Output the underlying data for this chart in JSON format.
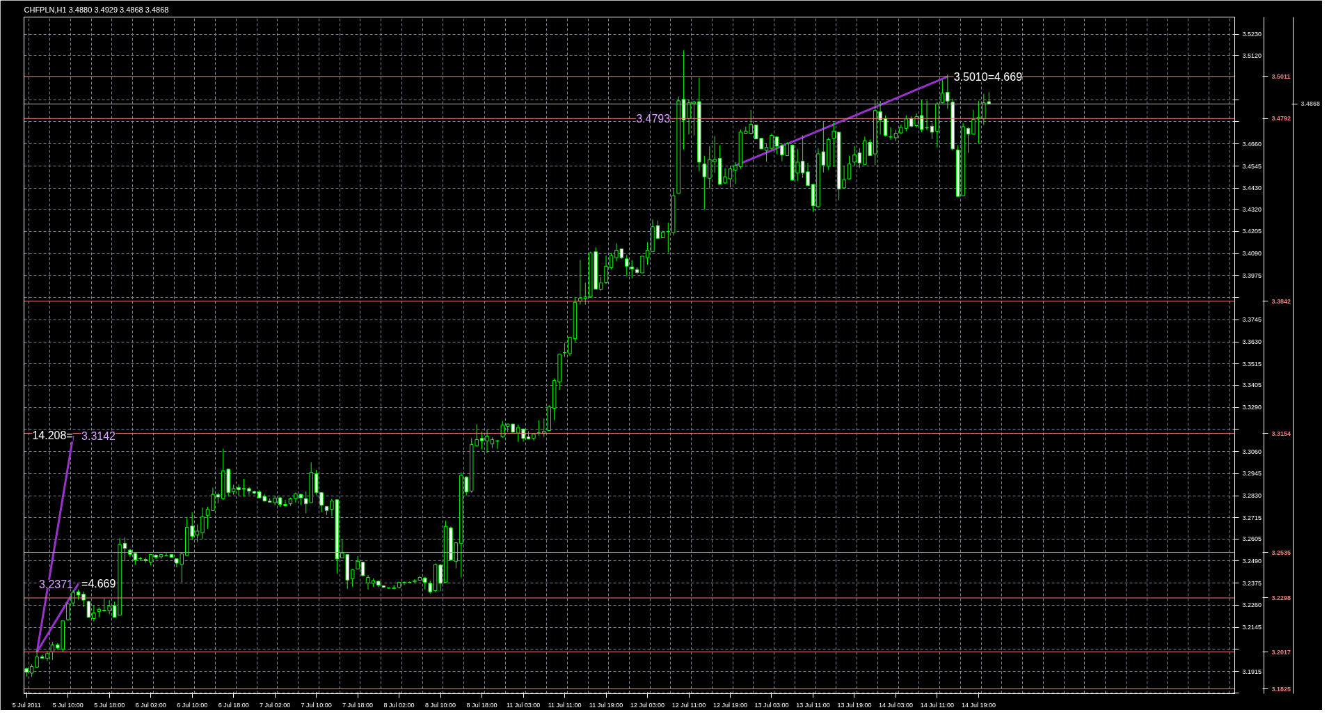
{
  "chart_data": {
    "type": "candlestick",
    "title": "CHFPLN,H1  3.4880 3.4929 3.4868 3.4868",
    "color": "#00ff00",
    "categories": [
      "5 Jul 2011",
      null,
      null,
      null,
      null,
      null,
      null,
      null,
      "5 Jul 10:00",
      null,
      null,
      null,
      null,
      null,
      null,
      null,
      "5 Jul 18:00",
      null,
      null,
      null,
      null,
      null,
      null,
      null,
      "6 Jul 02:00",
      null,
      null,
      null,
      null,
      null,
      null,
      null,
      "6 Jul 10:00",
      null,
      null,
      null,
      null,
      null,
      null,
      null,
      "6 Jul 18:00",
      null,
      null,
      null,
      null,
      null,
      null,
      null,
      "7 Jul 02:00",
      null,
      null,
      null,
      null,
      null,
      null,
      null,
      "7 Jul 10:00",
      null,
      null,
      null,
      null,
      null,
      null,
      null,
      "7 Jul 18:00",
      null,
      null,
      null,
      null,
      null,
      null,
      null,
      "8 Jul 02:00",
      null,
      null,
      null,
      null,
      null,
      null,
      null,
      "8 Jul 10:00",
      null,
      null,
      null,
      null,
      null,
      null,
      null,
      "8 Jul 18:00",
      null,
      null,
      null,
      null,
      null,
      null,
      null,
      "11 Jul 03:00",
      null,
      null,
      null,
      null,
      null,
      null,
      null,
      "11 Jul 11:00",
      null,
      null,
      null,
      null,
      null,
      null,
      null,
      "11 Jul 19:00",
      null,
      null,
      null,
      null,
      null,
      null,
      null,
      "12 Jul 03:00",
      null,
      null,
      null,
      null,
      null,
      null,
      null,
      "12 Jul 11:00",
      null,
      null,
      null,
      null,
      null,
      null,
      null,
      "12 Jul 19:00",
      null,
      null,
      null,
      null,
      null,
      null,
      null,
      "13 Jul 03:00",
      null,
      null,
      null,
      null,
      null,
      null,
      null,
      "13 Jul 11:00",
      null,
      null,
      null,
      null,
      null,
      null,
      null,
      "13 Jul 19:00",
      null,
      null,
      null,
      null,
      null,
      null,
      null,
      "14 Jul 03:00",
      null,
      null,
      null,
      null,
      null,
      null,
      null,
      "14 Jul 11:00",
      null,
      null,
      null,
      null,
      null,
      null,
      null,
      "14 Jul 19:00",
      null,
      null,
      null,
      null,
      null,
      null,
      null,
      null,
      null,
      null,
      null,
      null,
      null,
      null,
      null,
      null,
      null,
      null,
      null,
      null,
      null,
      null,
      null,
      null,
      null,
      null,
      null,
      null,
      null,
      null,
      null,
      null,
      null,
      null,
      null,
      null,
      null,
      null,
      null,
      null,
      null,
      null,
      null,
      null,
      null,
      null,
      null,
      null,
      null
    ],
    "ohlc": [
      [
        3.193,
        3.1936,
        3.1889,
        3.1912
      ],
      [
        3.1907,
        3.1953,
        3.1887,
        3.1941
      ],
      [
        3.1938,
        3.2028,
        3.1936,
        3.1991
      ],
      [
        3.1991,
        3.2002,
        3.1982,
        3.1984
      ],
      [
        3.1984,
        3.2023,
        3.197,
        3.2009
      ],
      [
        3.2017,
        3.2069,
        3.1976,
        3.2054
      ],
      [
        3.2054,
        3.2063,
        3.2028,
        3.2038
      ],
      [
        3.2031,
        3.2179,
        3.2017,
        3.2179
      ],
      [
        3.2185,
        3.2272,
        3.2179,
        3.2266
      ],
      [
        3.2272,
        3.2338,
        3.2255,
        3.2327
      ],
      [
        3.233,
        3.2342,
        3.2289,
        3.2313
      ],
      [
        3.2318,
        3.2332,
        3.2251,
        3.2287
      ],
      [
        3.228,
        3.2284,
        3.2197,
        3.2197
      ],
      [
        3.2191,
        3.2258,
        3.2176,
        3.222
      ],
      [
        3.2228,
        3.2249,
        3.2199,
        3.2239
      ],
      [
        3.2231,
        3.2295,
        3.2226,
        3.2234
      ],
      [
        3.2231,
        3.2287,
        3.2214,
        3.2257
      ],
      [
        3.2258,
        3.2278,
        3.2197,
        3.2197
      ],
      [
        3.2208,
        3.2608,
        3.2208,
        3.2576
      ],
      [
        3.2582,
        3.2614,
        3.2489,
        3.2556
      ],
      [
        3.2547,
        3.2553,
        3.251,
        3.2525
      ],
      [
        3.253,
        3.2533,
        3.2472,
        3.2496
      ],
      [
        3.2504,
        3.2512,
        3.2489,
        3.2502
      ],
      [
        3.2498,
        3.2508,
        3.2481,
        3.2492
      ],
      [
        3.2484,
        3.2527,
        3.2467,
        3.2524
      ],
      [
        3.2521,
        3.2524,
        3.2501,
        3.251
      ],
      [
        3.2512,
        3.2524,
        3.2502,
        3.2524
      ],
      [
        3.2518,
        3.2531,
        3.2516,
        3.2519
      ],
      [
        3.2524,
        3.2524,
        3.251,
        3.251
      ],
      [
        3.2502,
        3.2504,
        3.2458,
        3.2479
      ],
      [
        3.2472,
        3.253,
        3.238,
        3.2527
      ],
      [
        3.2519,
        3.2713,
        3.2516,
        3.2666
      ],
      [
        3.2672,
        3.2744,
        3.2599,
        3.2618
      ],
      [
        3.2626,
        3.268,
        3.2589,
        3.2646
      ],
      [
        3.2637,
        3.2768,
        3.2605,
        3.2721
      ],
      [
        3.2728,
        3.2773,
        3.2658,
        3.2759
      ],
      [
        3.2753,
        3.2872,
        3.2751,
        3.2837
      ],
      [
        3.2835,
        3.2846,
        3.2791,
        3.2823
      ],
      [
        3.2815,
        3.3075,
        3.2808,
        3.2959
      ],
      [
        3.2968,
        3.297,
        3.2826,
        3.2846
      ],
      [
        3.285,
        3.2887,
        3.2835,
        3.2867
      ],
      [
        3.2872,
        3.2889,
        3.2831,
        3.2861
      ],
      [
        3.2867,
        3.2918,
        3.2825,
        3.2865
      ],
      [
        3.2867,
        3.2875,
        3.2835,
        3.2854
      ],
      [
        3.2852,
        3.2855,
        3.2837,
        3.2844
      ],
      [
        3.285,
        3.2858,
        3.2819,
        3.2819
      ],
      [
        3.2826,
        3.2837,
        3.28,
        3.2802
      ],
      [
        3.2802,
        3.2817,
        3.2794,
        3.2796
      ],
      [
        3.2794,
        3.2829,
        3.278,
        3.2817
      ],
      [
        3.2819,
        3.2823,
        3.2771,
        3.2785
      ],
      [
        3.2785,
        3.2809,
        3.2775,
        3.2778
      ],
      [
        3.2788,
        3.282,
        3.2777,
        3.2814
      ],
      [
        3.2815,
        3.2846,
        3.2794,
        3.284
      ],
      [
        3.2837,
        3.284,
        3.2782,
        3.2819
      ],
      [
        3.2815,
        3.2852,
        3.2738,
        3.2788
      ],
      [
        3.2794,
        3.3003,
        3.2794,
        3.2951
      ],
      [
        3.2945,
        3.2965,
        3.2835,
        3.2846
      ],
      [
        3.2846,
        3.2849,
        3.2744,
        3.278
      ],
      [
        3.2774,
        3.2777,
        3.273,
        3.2753
      ],
      [
        3.2759,
        3.2814,
        3.2724,
        3.2802
      ],
      [
        3.2809,
        3.2811,
        3.2425,
        3.2501
      ],
      [
        3.2506,
        3.2603,
        3.2506,
        3.2531
      ],
      [
        3.2524,
        3.2524,
        3.2345,
        3.2391
      ],
      [
        3.2397,
        3.2446,
        3.2356,
        3.2444
      ],
      [
        3.2449,
        3.2516,
        3.2446,
        3.2489
      ],
      [
        3.2484,
        3.2487,
        3.2411,
        3.2414
      ],
      [
        3.2376,
        3.2417,
        3.2342,
        3.2405
      ],
      [
        3.2374,
        3.24,
        3.2356,
        3.2388
      ],
      [
        3.2385,
        3.2388,
        3.2353,
        3.2365
      ],
      [
        3.2361,
        3.2365,
        3.235,
        3.2353
      ],
      [
        3.235,
        3.2353,
        3.2345,
        3.2349
      ],
      [
        3.2346,
        3.2365,
        3.2345,
        3.235
      ],
      [
        3.2353,
        3.2382,
        3.2347,
        3.238
      ],
      [
        3.2376,
        3.2385,
        3.2365,
        3.2379
      ],
      [
        3.238,
        3.2382,
        3.2376,
        3.2379
      ],
      [
        3.2382,
        3.2396,
        3.2379,
        3.2388
      ],
      [
        3.239,
        3.2411,
        3.2388,
        3.2405
      ],
      [
        3.2402,
        3.2408,
        3.2342,
        3.238
      ],
      [
        3.2374,
        3.2388,
        3.2321,
        3.233
      ],
      [
        3.2336,
        3.2477,
        3.2328,
        3.2472
      ],
      [
        3.2469,
        3.2475,
        3.2333,
        3.2374
      ],
      [
        3.238,
        3.2699,
        3.238,
        3.267
      ],
      [
        3.2663,
        3.2669,
        3.2496,
        3.2496
      ],
      [
        3.2489,
        3.2588,
        3.2452,
        3.2585
      ],
      [
        3.2582,
        3.2951,
        3.2405,
        3.2936
      ],
      [
        3.2927,
        3.293,
        3.2831,
        3.2849
      ],
      [
        3.2854,
        3.313,
        3.2846,
        3.3096
      ],
      [
        3.309,
        3.3202,
        3.3084,
        3.3122
      ],
      [
        3.3128,
        3.3162,
        3.3072,
        3.3116
      ],
      [
        3.3115,
        3.3171,
        3.3052,
        3.314
      ],
      [
        3.3099,
        3.3133,
        3.3078,
        3.3122
      ],
      [
        3.3113,
        3.3119,
        3.3073,
        3.3116
      ],
      [
        3.3136,
        3.3218,
        3.3131,
        3.3197
      ],
      [
        3.3191,
        3.3203,
        3.316,
        3.3203
      ],
      [
        3.3203,
        3.3203,
        3.316,
        3.316
      ],
      [
        3.3156,
        3.32,
        3.311,
        3.3185
      ],
      [
        3.3177,
        3.3179,
        3.311,
        3.3128
      ],
      [
        3.3136,
        3.3165,
        3.3125,
        3.3125
      ],
      [
        3.3128,
        3.3154,
        3.3117,
        3.3151
      ],
      [
        3.3155,
        3.3223,
        3.3142,
        3.3157
      ],
      [
        3.3156,
        3.3232,
        3.3136,
        3.3165
      ],
      [
        3.3169,
        3.3301,
        3.3168,
        3.3293
      ],
      [
        3.3285,
        3.344,
        3.3223,
        3.3429
      ],
      [
        3.3421,
        3.3566,
        3.338,
        3.3566
      ],
      [
        3.3573,
        3.3624,
        3.3552,
        3.3575
      ],
      [
        3.3569,
        3.3655,
        3.3557,
        3.3655
      ],
      [
        3.3647,
        3.3859,
        3.3632,
        3.3836
      ],
      [
        3.3842,
        3.4056,
        3.3824,
        3.3858
      ],
      [
        3.3856,
        3.3939,
        3.3824,
        3.3864
      ],
      [
        3.3864,
        3.4099,
        3.3861,
        3.4093
      ],
      [
        3.4099,
        3.4122,
        3.3905,
        3.3905
      ],
      [
        3.3904,
        3.3968,
        3.3896,
        3.3937
      ],
      [
        3.394,
        3.4079,
        3.3931,
        3.4024
      ],
      [
        3.4016,
        3.4093,
        3.4009,
        3.4079
      ],
      [
        3.4068,
        3.4143,
        3.405,
        3.4107
      ],
      [
        3.4114,
        3.4114,
        3.4061,
        3.4068
      ],
      [
        3.4062,
        3.4082,
        3.3972,
        3.4024
      ],
      [
        3.402,
        3.4056,
        3.396,
        3.401
      ],
      [
        3.4006,
        3.4018,
        3.3983,
        3.3991
      ],
      [
        3.3989,
        3.4076,
        3.3989,
        3.4076
      ],
      [
        3.4068,
        3.4148,
        3.4032,
        3.4107
      ],
      [
        3.4099,
        3.4267,
        3.4099,
        3.4229
      ],
      [
        3.4235,
        3.4262,
        3.4166,
        3.4169
      ],
      [
        3.4172,
        3.4209,
        3.4172,
        3.4201
      ],
      [
        3.4203,
        3.4251,
        3.4095,
        3.4205
      ],
      [
        3.4199,
        3.4429,
        3.4184,
        3.4391
      ],
      [
        3.4402,
        3.4907,
        3.4402,
        3.4884
      ],
      [
        3.4892,
        3.5147,
        3.4631,
        3.4785
      ],
      [
        3.4791,
        3.4892,
        3.471,
        3.4874
      ],
      [
        3.4869,
        3.4884,
        3.4704,
        3.4878
      ],
      [
        3.488,
        3.5005,
        3.4518,
        3.4565
      ],
      [
        3.4556,
        3.4599,
        3.4318,
        3.4489
      ],
      [
        3.4481,
        3.4648,
        3.4428,
        3.4579
      ],
      [
        3.4568,
        3.4701,
        3.451,
        3.4579
      ],
      [
        3.4585,
        3.4652,
        3.4445,
        3.4451
      ],
      [
        3.4457,
        3.4533,
        3.4451,
        3.4489
      ],
      [
        3.4478,
        3.4547,
        3.4434,
        3.453
      ],
      [
        3.4524,
        3.4565,
        3.4452,
        3.4547
      ],
      [
        3.4541,
        3.4735,
        3.453,
        3.4721
      ],
      [
        3.4715,
        3.475,
        3.4713,
        3.4727
      ],
      [
        3.4715,
        3.4837,
        3.471,
        3.4762
      ],
      [
        3.4758,
        3.4758,
        3.4686,
        3.4686
      ],
      [
        3.4689,
        3.4689,
        3.4634,
        3.4634
      ],
      [
        3.4626,
        3.466,
        3.4567,
        3.4642
      ],
      [
        3.4637,
        3.4715,
        3.4628,
        3.4704
      ],
      [
        3.4696,
        3.47,
        3.4608,
        3.4648
      ],
      [
        3.4652,
        3.4663,
        3.457,
        3.4602
      ],
      [
        3.4599,
        3.4669,
        3.4597,
        3.4661
      ],
      [
        3.4654,
        3.4657,
        3.4468,
        3.4472
      ],
      [
        3.4509,
        3.4634,
        3.4466,
        3.4565
      ],
      [
        3.457,
        3.4704,
        3.4483,
        3.451
      ],
      [
        3.4515,
        3.4561,
        3.4443,
        3.4443
      ],
      [
        3.4449,
        3.4454,
        3.4306,
        3.4338
      ],
      [
        3.4333,
        3.4638,
        3.4329,
        3.4609
      ],
      [
        3.4619,
        3.4777,
        3.4512,
        3.455
      ],
      [
        3.4544,
        3.4692,
        3.4524,
        3.4683
      ],
      [
        3.4689,
        3.4773,
        3.4541,
        3.4727
      ],
      [
        3.4721,
        3.4721,
        3.4367,
        3.4425
      ],
      [
        3.4431,
        3.4545,
        3.4431,
        3.4474
      ],
      [
        3.4478,
        3.4599,
        3.4475,
        3.4556
      ],
      [
        3.4565,
        3.4649,
        3.4547,
        3.4603
      ],
      [
        3.4613,
        3.4638,
        3.4536,
        3.4561
      ],
      [
        3.4553,
        3.4698,
        3.4553,
        3.4677
      ],
      [
        3.4669,
        3.4683,
        3.4599,
        3.4599
      ],
      [
        3.4608,
        3.4892,
        3.455,
        3.4834
      ],
      [
        3.4828,
        3.4884,
        3.471,
        3.4785
      ],
      [
        3.4791,
        3.4808,
        3.4698,
        3.4704
      ],
      [
        3.4697,
        3.4747,
        3.4681,
        3.4695
      ],
      [
        3.4692,
        3.4733,
        3.4675,
        3.4715
      ],
      [
        3.4717,
        3.4761,
        3.4711,
        3.4746
      ],
      [
        3.4741,
        3.4808,
        3.4726,
        3.479
      ],
      [
        3.4793,
        3.4804,
        3.4746,
        3.4752
      ],
      [
        3.4755,
        3.4819,
        3.4746,
        3.4802
      ],
      [
        3.4808,
        3.4891,
        3.4721,
        3.4735
      ],
      [
        3.4745,
        3.4885,
        3.4732,
        3.4743
      ],
      [
        3.4752,
        3.477,
        3.4686,
        3.4721
      ],
      [
        3.4726,
        3.4877,
        3.4642,
        3.4868
      ],
      [
        3.4874,
        3.4993,
        3.4871,
        3.4924
      ],
      [
        3.4929,
        3.5022,
        3.4842,
        3.4883
      ],
      [
        3.4877,
        3.4897,
        3.4625,
        3.4634
      ],
      [
        3.4628,
        3.4653,
        3.4387,
        3.4387
      ],
      [
        3.439,
        3.4769,
        3.439,
        3.475
      ],
      [
        3.4741,
        3.4746,
        3.4614,
        3.4712
      ],
      [
        3.4712,
        3.4837,
        3.4709,
        3.4787
      ],
      [
        3.479,
        3.4883,
        3.4663,
        3.4799
      ],
      [
        3.479,
        3.492,
        3.4758,
        3.4874
      ],
      [
        3.488,
        3.4929,
        3.4868,
        3.4868
      ],
      null,
      null,
      null,
      null,
      null,
      null,
      null,
      null,
      null,
      null,
      null,
      null,
      null,
      null,
      null,
      null,
      null,
      null,
      null,
      null,
      null,
      null,
      null,
      null,
      null,
      null,
      null,
      null,
      null,
      null,
      null,
      null,
      null,
      null,
      null,
      null,
      null,
      null,
      null,
      null,
      null,
      null,
      null,
      null,
      null,
      null,
      null
    ],
    "series": [
      {
        "type": "line",
        "color": "#9932cc",
        "values": [
          null,
          null,
          3.2017,
          null,
          null,
          null,
          null,
          null,
          null,
          3.3142,
          null,
          null,
          null,
          null,
          null,
          null,
          null,
          null,
          null,
          null,
          null,
          null,
          null,
          null,
          null,
          null,
          null,
          null,
          null,
          null,
          null,
          null,
          null,
          null,
          null,
          null,
          null,
          null,
          null,
          null,
          null,
          null,
          null,
          null,
          null,
          null,
          null,
          null,
          null,
          null,
          null,
          null,
          null,
          null,
          null,
          null,
          null,
          null,
          null,
          null,
          null,
          null,
          null,
          null,
          null,
          null,
          null,
          null,
          null,
          null,
          null,
          null,
          null,
          null,
          null,
          null,
          null,
          null,
          null,
          null,
          null,
          null,
          null,
          null,
          null,
          null,
          null,
          null,
          null,
          null,
          null,
          null,
          null,
          null,
          null,
          null,
          null,
          null,
          null,
          null,
          null,
          null,
          null,
          null,
          null,
          null,
          null,
          null,
          null,
          null,
          null,
          null,
          null,
          null,
          null,
          null,
          null,
          null,
          null,
          null,
          null,
          null,
          null,
          null,
          null,
          null,
          null,
          null,
          null,
          null,
          null,
          null,
          null,
          null,
          null,
          null,
          null,
          null,
          null,
          null,
          null,
          null,
          null,
          null,
          null,
          null,
          null,
          null,
          null,
          null,
          null,
          null,
          null,
          null,
          null,
          null,
          null,
          null,
          null,
          null,
          null,
          null,
          null,
          null,
          null,
          null,
          null,
          null,
          null,
          null,
          null,
          null,
          null,
          null,
          null,
          null,
          null,
          null,
          null,
          null,
          null,
          null,
          null,
          null,
          null,
          null,
          null,
          null,
          null,
          null,
          null,
          null,
          null,
          null,
          null,
          null,
          null,
          null,
          null,
          null,
          null,
          null,
          null,
          null,
          null,
          null,
          null,
          null,
          null,
          null,
          null,
          null,
          null,
          null,
          null,
          null,
          null,
          null,
          null,
          null,
          null,
          null,
          null,
          null,
          null,
          null,
          null,
          null,
          null,
          null,
          null,
          null,
          null,
          null
        ]
      },
      {
        "type": "line",
        "color": "#9932cc",
        "values": [
          null,
          null,
          3.2017,
          null,
          null,
          null,
          null,
          null,
          null,
          null,
          3.2371,
          null,
          null,
          null,
          null,
          null,
          null,
          null,
          null,
          null,
          null,
          null,
          null,
          null,
          null,
          null,
          null,
          null,
          null,
          null,
          null,
          null,
          null,
          null,
          null,
          null,
          null,
          null,
          null,
          null,
          null,
          null,
          null,
          null,
          null,
          null,
          null,
          null,
          null,
          null,
          null,
          null,
          null,
          null,
          null,
          null,
          null,
          null,
          null,
          null,
          null,
          null,
          null,
          null,
          null,
          null,
          null,
          null,
          null,
          null,
          null,
          null,
          null,
          null,
          null,
          null,
          null,
          null,
          null,
          null,
          null,
          null,
          null,
          null,
          null,
          null,
          null,
          null,
          null,
          null,
          null,
          null,
          null,
          null,
          null,
          null,
          null,
          null,
          null,
          null,
          null,
          null,
          null,
          null,
          null,
          null,
          null,
          null,
          null,
          null,
          null,
          null,
          null,
          null,
          null,
          null,
          null,
          null,
          null,
          null,
          null,
          null,
          null,
          null,
          null,
          null,
          null,
          null,
          null,
          null,
          null,
          null,
          null,
          null,
          null,
          null,
          null,
          null,
          null,
          null,
          null,
          null,
          null,
          null,
          null,
          null,
          null,
          null,
          null,
          null,
          null,
          null,
          null,
          null,
          null,
          null,
          null,
          null,
          null,
          null,
          null,
          null,
          null,
          null,
          null,
          null,
          null,
          null,
          null,
          null,
          null,
          null,
          null,
          null,
          null,
          null,
          null,
          null,
          null,
          null,
          null,
          null,
          null,
          null,
          null,
          null,
          null,
          null,
          null,
          null,
          null,
          null,
          null,
          null,
          null,
          null,
          null,
          null,
          null,
          null,
          null,
          null,
          null,
          null,
          null,
          null,
          null,
          null,
          null,
          null,
          null,
          null,
          null,
          null,
          null,
          null,
          null,
          null,
          null,
          null,
          null,
          null,
          null,
          null,
          null,
          null,
          null,
          null,
          null,
          null,
          null,
          null,
          null,
          null
        ]
      },
      {
        "type": "line",
        "color": "#9932cc",
        "values": [
          null,
          null,
          null,
          null,
          null,
          null,
          null,
          null,
          null,
          null,
          null,
          null,
          null,
          null,
          null,
          null,
          null,
          null,
          null,
          null,
          null,
          null,
          null,
          null,
          null,
          null,
          null,
          null,
          null,
          null,
          null,
          null,
          null,
          null,
          null,
          null,
          null,
          null,
          null,
          null,
          null,
          null,
          null,
          null,
          null,
          null,
          null,
          null,
          null,
          null,
          null,
          null,
          null,
          null,
          null,
          null,
          null,
          null,
          null,
          null,
          null,
          null,
          null,
          null,
          null,
          null,
          null,
          null,
          null,
          null,
          null,
          null,
          null,
          null,
          null,
          null,
          null,
          null,
          null,
          null,
          null,
          null,
          null,
          null,
          null,
          null,
          null,
          null,
          null,
          null,
          null,
          null,
          null,
          null,
          null,
          null,
          null,
          null,
          null,
          null,
          null,
          null,
          null,
          null,
          null,
          null,
          null,
          null,
          null,
          null,
          null,
          null,
          null,
          null,
          null,
          null,
          null,
          null,
          null,
          null,
          null,
          null,
          null,
          null,
          null,
          null,
          null,
          null,
          null,
          null,
          null,
          null,
          null,
          null,
          null,
          null,
          null,
          3.4547,
          null,
          null,
          null,
          null,
          null,
          null,
          null,
          null,
          null,
          null,
          null,
          null,
          null,
          null,
          null,
          null,
          null,
          null,
          null,
          null,
          null,
          null,
          null,
          null,
          null,
          null,
          null,
          null,
          null,
          null,
          null,
          null,
          null,
          null,
          null,
          null,
          null,
          null,
          null,
          null,
          3.501,
          null,
          null,
          null,
          null,
          null,
          null,
          null,
          null,
          null,
          null,
          null,
          null,
          null,
          null,
          null,
          null,
          null,
          null,
          null,
          null,
          null,
          null,
          null,
          null,
          null,
          null,
          null,
          null,
          null,
          null,
          null,
          null,
          null,
          null,
          null,
          null,
          null,
          null,
          null,
          null,
          null,
          null,
          null,
          null,
          null,
          null,
          null,
          null,
          null,
          null,
          null,
          null,
          null,
          null,
          null
        ]
      }
    ],
    "annotations": [
      {
        "text": "14.208=",
        "y": 3.3142
      },
      "3.3142",
      "3.2371",
      "=4.669",
      "3.4793",
      {
        "text": "3.5010=4.669",
        "y": 3.501
      }
    ],
    "ref_lines": [
      {
        "axis": "y",
        "value": 3.5011,
        "label": "3.5011",
        "color": "#f08080"
      },
      {
        "axis": "y",
        "value": 3.4868,
        "label": "3.4868",
        "color": "#a9a9a9"
      },
      {
        "axis": "y",
        "value": 3.4792,
        "label": "3.4792",
        "color": "#f08080"
      },
      {
        "axis": "y",
        "value": 3.3842,
        "label": "3.3842",
        "color": "#f08080"
      },
      {
        "axis": "y",
        "value": 3.3154,
        "label": "3.3154",
        "color": "#f08080"
      },
      {
        "axis": "y",
        "value": 3.2535,
        "label": "3.2535",
        "color": "#f08080"
      },
      {
        "axis": "y",
        "value": 3.2298,
        "label": "3.2298",
        "color": "#f08080"
      },
      {
        "axis": "y",
        "value": 3.2017,
        "label": "3.2017",
        "color": "#f08080"
      },
      {
        "axis": "y",
        "value": 3.1825,
        "label": "3.1825",
        "color": "#f08080"
      }
    ],
    "ylim": [
      3.18,
      3.532
    ],
    "yticks": [
      {
        "value": 3.523,
        "label": "3.5230"
      },
      {
        "value": 3.512,
        "label": "3.5120"
      },
      {
        "value": 3.489,
        "label": null
      },
      {
        "value": 3.4775,
        "label": null
      },
      {
        "value": 3.466,
        "label": "3.4660"
      },
      {
        "value": 3.4545,
        "label": "3.4545"
      },
      {
        "value": 3.443,
        "label": "3.4430"
      },
      {
        "value": 3.432,
        "label": "3.4320"
      },
      {
        "value": 3.4205,
        "label": "3.4205"
      },
      {
        "value": 3.409,
        "label": "3.4090"
      },
      {
        "value": 3.3975,
        "label": "3.3975"
      },
      {
        "value": 3.386,
        "label": null
      },
      {
        "value": 3.3745,
        "label": "3.3745"
      },
      {
        "value": 3.363,
        "label": "3.3630"
      },
      {
        "value": 3.3515,
        "label": "3.3515"
      },
      {
        "value": 3.3405,
        "label": "3.3405"
      },
      {
        "value": 3.329,
        "label": "3.3290"
      },
      {
        "value": 3.3175,
        "label": null
      },
      {
        "value": 3.306,
        "label": "3.3060"
      },
      {
        "value": 3.2945,
        "label": "3.2945"
      },
      {
        "value": 3.283,
        "label": "3.2830"
      },
      {
        "value": 3.2715,
        "label": "3.2715"
      },
      {
        "value": 3.2605,
        "label": "3.2605"
      },
      {
        "value": 3.249,
        "label": "3.2490"
      },
      {
        "value": 3.2375,
        "label": "3.2375"
      },
      {
        "value": 3.226,
        "label": "3.2260"
      },
      {
        "value": 3.2145,
        "label": "3.2145"
      },
      {
        "value": 3.203,
        "label": null
      },
      {
        "value": 3.1915,
        "label": "3.1915"
      },
      {
        "value": 3.1805,
        "label": null
      }
    ],
    "grid": true
  }
}
